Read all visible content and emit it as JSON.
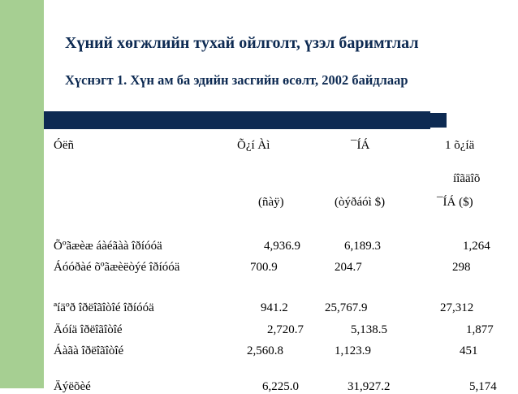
{
  "slide": {
    "title": "Хүний хөгжлийн тухай ойлголт, үзэл баримтлал",
    "subtitle": "Хүснэгт 1. Хүн ам ба эдийн засгийн өсөлт, 2002 байдлаар"
  },
  "table": {
    "headers": {
      "col1": "Óëñ",
      "col2": "Õ¿í Àì",
      "col3": "¯ÍÁ",
      "col4_line1": "1 õ¿íä",
      "col4_line2": "íîãäîõ",
      "col2_unit": "(ñàÿ)",
      "col3_unit": "(òýðáóì $)",
      "col4_unit": "¯ÍÁ ($)"
    },
    "rows": [
      {
        "country": "Õºãæèæ áàéãàà îðíóóä",
        "pop": "4,936.9",
        "gdp": "6,189.3",
        "per_capita": "1,264"
      },
      {
        "country": "Áóóðàé õºãæèëòýé îðíóóä",
        "pop": "700.9",
        "gdp": "204.7",
        "per_capita": "298"
      },
      {
        "country": "ªíäºð îðëîãîòîé îðíóóä",
        "pop": "941.2",
        "gdp": "25,767.9",
        "per_capita": "27,312"
      },
      {
        "country": "Äóíä îðëîãîòîé",
        "pop": "2,720.7",
        "gdp": "5,138.5",
        "per_capita": "1,877"
      },
      {
        "country": "Áàãà îðëîãîòîé",
        "pop": "2,560.8",
        "gdp": "1,123.9",
        "per_capita": "451"
      }
    ],
    "partial_row": {
      "country": "Äýëõèé",
      "pop": "6,225.0",
      "gdp": "31,927.2",
      "per_capita": "5,174"
    }
  }
}
